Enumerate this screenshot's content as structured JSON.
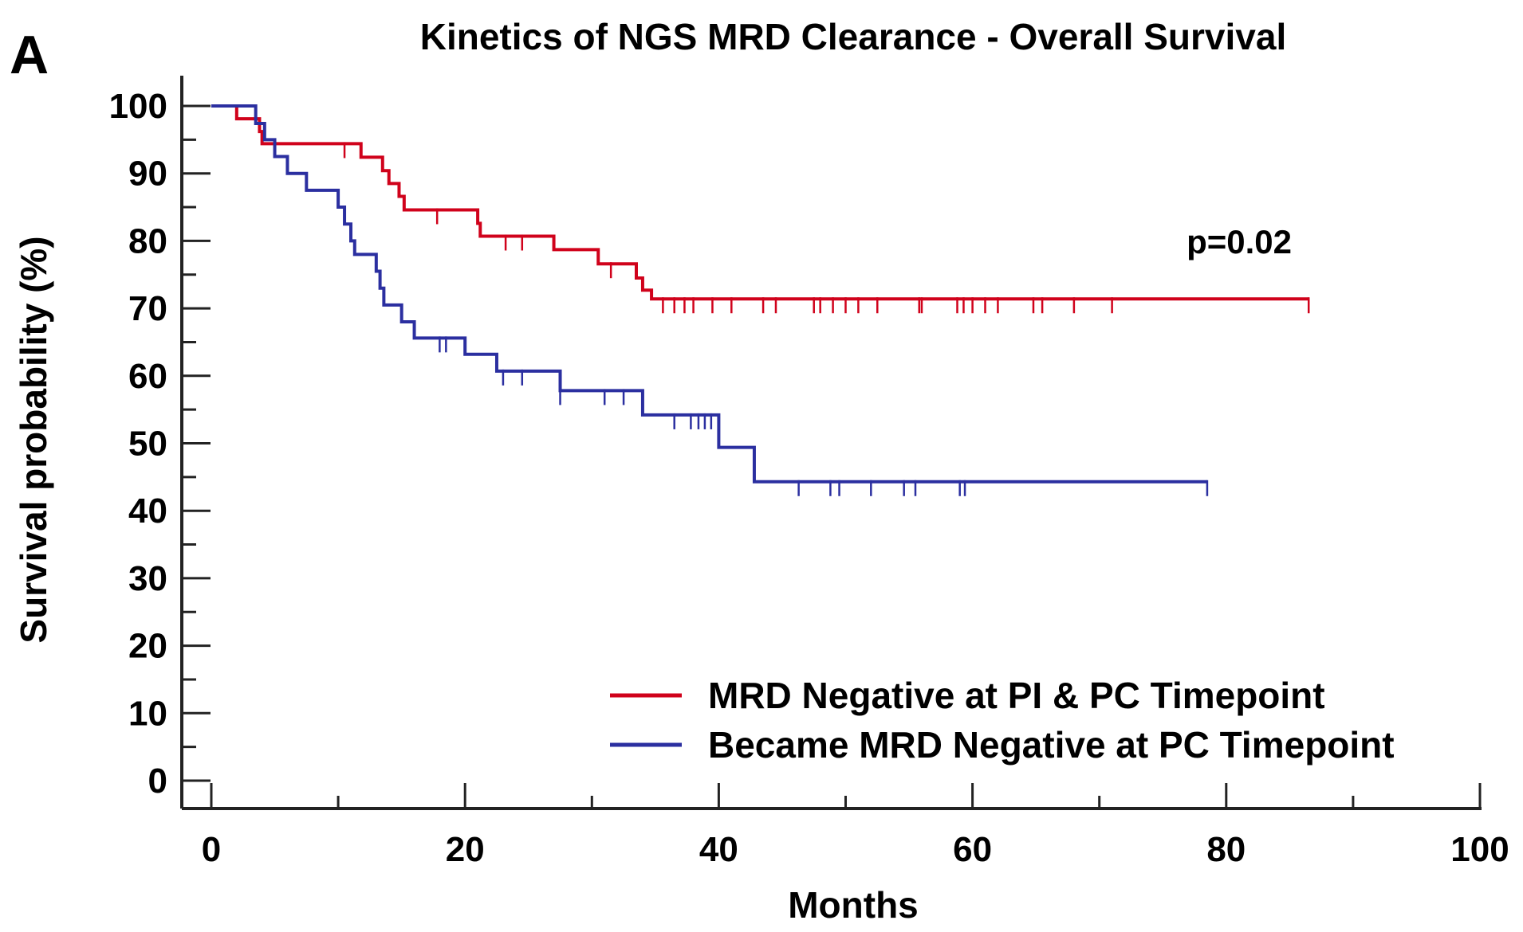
{
  "panel_label": "A",
  "chart_data": {
    "type": "line",
    "title": "Kinetics of NGS MRD Clearance - Overall Survival",
    "xlabel": "Months",
    "ylabel": "Survival probability (%)",
    "xlim": [
      0,
      100
    ],
    "ylim": [
      0,
      100
    ],
    "x_ticks": [
      0,
      20,
      40,
      60,
      80,
      100
    ],
    "x_tick_labels": [
      "0",
      "20",
      "40",
      "60",
      "80",
      "100"
    ],
    "y_ticks": [
      0,
      10,
      20,
      30,
      40,
      50,
      60,
      70,
      80,
      90,
      100
    ],
    "y_tick_labels": [
      "0",
      "10",
      "20",
      "30",
      "40",
      "50",
      "60",
      "70",
      "80",
      "90",
      "100"
    ],
    "grid": false,
    "legend_position": "bottom-right",
    "annotation": "p=0.02",
    "series": [
      {
        "name": "MRD Negative at PI & PC Timepoint",
        "color": "#d0021b",
        "steps": [
          [
            0,
            100
          ],
          [
            2,
            98.1
          ],
          [
            3.8,
            96.2
          ],
          [
            4,
            94.4
          ],
          [
            11.8,
            92.4
          ],
          [
            13.5,
            90.4
          ],
          [
            14,
            88.5
          ],
          [
            14.8,
            86.6
          ],
          [
            15.2,
            84.6
          ],
          [
            21,
            82.6
          ],
          [
            21.2,
            80.7
          ],
          [
            27,
            78.7
          ],
          [
            30.5,
            76.6
          ],
          [
            33.5,
            74.5
          ],
          [
            34,
            72.7
          ],
          [
            34.7,
            71.4
          ],
          [
            86.5,
            71.4
          ]
        ],
        "censored": [
          [
            10.5,
            94.4
          ],
          [
            17.8,
            84.6
          ],
          [
            23.2,
            80.7
          ],
          [
            24.5,
            80.7
          ],
          [
            31.5,
            76.6
          ],
          [
            35.6,
            71.4
          ],
          [
            36.5,
            71.4
          ],
          [
            37.3,
            71.4
          ],
          [
            38,
            71.4
          ],
          [
            39.5,
            71.4
          ],
          [
            41,
            71.4
          ],
          [
            43.5,
            71.4
          ],
          [
            44.5,
            71.4
          ],
          [
            47.5,
            71.4
          ],
          [
            48,
            71.4
          ],
          [
            49,
            71.4
          ],
          [
            50,
            71.4
          ],
          [
            51,
            71.4
          ],
          [
            52.5,
            71.4
          ],
          [
            55.8,
            71.4
          ],
          [
            56,
            71.4
          ],
          [
            58.8,
            71.4
          ],
          [
            59.3,
            71.4
          ],
          [
            60,
            71.4
          ],
          [
            61,
            71.4
          ],
          [
            62,
            71.4
          ],
          [
            64.8,
            71.4
          ],
          [
            65.5,
            71.4
          ],
          [
            68,
            71.4
          ],
          [
            71,
            71.4
          ],
          [
            86.5,
            71.4
          ]
        ]
      },
      {
        "name": "Became MRD Negative at PC Timepoint",
        "color": "#2b2fa0",
        "steps": [
          [
            0,
            100
          ],
          [
            3.5,
            97.4
          ],
          [
            4.2,
            95
          ],
          [
            5,
            92.5
          ],
          [
            6,
            90
          ],
          [
            7.5,
            87.5
          ],
          [
            10,
            85
          ],
          [
            10.5,
            82.5
          ],
          [
            11,
            80
          ],
          [
            11.3,
            78
          ],
          [
            13,
            75.5
          ],
          [
            13.3,
            73
          ],
          [
            13.6,
            70.5
          ],
          [
            15,
            68
          ],
          [
            16,
            65.6
          ],
          [
            20,
            63.2
          ],
          [
            22.5,
            60.7
          ],
          [
            27.5,
            57.8
          ],
          [
            34,
            54.2
          ],
          [
            40,
            49.4
          ],
          [
            42.8,
            44.3
          ],
          [
            78.5,
            44.3
          ]
        ],
        "censored": [
          [
            18,
            65.6
          ],
          [
            18.5,
            65.6
          ],
          [
            23,
            60.7
          ],
          [
            24.5,
            60.7
          ],
          [
            27.5,
            57.8
          ],
          [
            31,
            57.8
          ],
          [
            32.5,
            57.8
          ],
          [
            36.5,
            54.2
          ],
          [
            37.8,
            54.2
          ],
          [
            38.4,
            54.2
          ],
          [
            38.9,
            54.2
          ],
          [
            39.4,
            54.2
          ],
          [
            46.3,
            44.3
          ],
          [
            48.8,
            44.3
          ],
          [
            49.5,
            44.3
          ],
          [
            52,
            44.3
          ],
          [
            54.6,
            44.3
          ],
          [
            55.5,
            44.3
          ],
          [
            59,
            44.3
          ],
          [
            59.4,
            44.3
          ],
          [
            78.5,
            44.3
          ]
        ]
      }
    ]
  }
}
